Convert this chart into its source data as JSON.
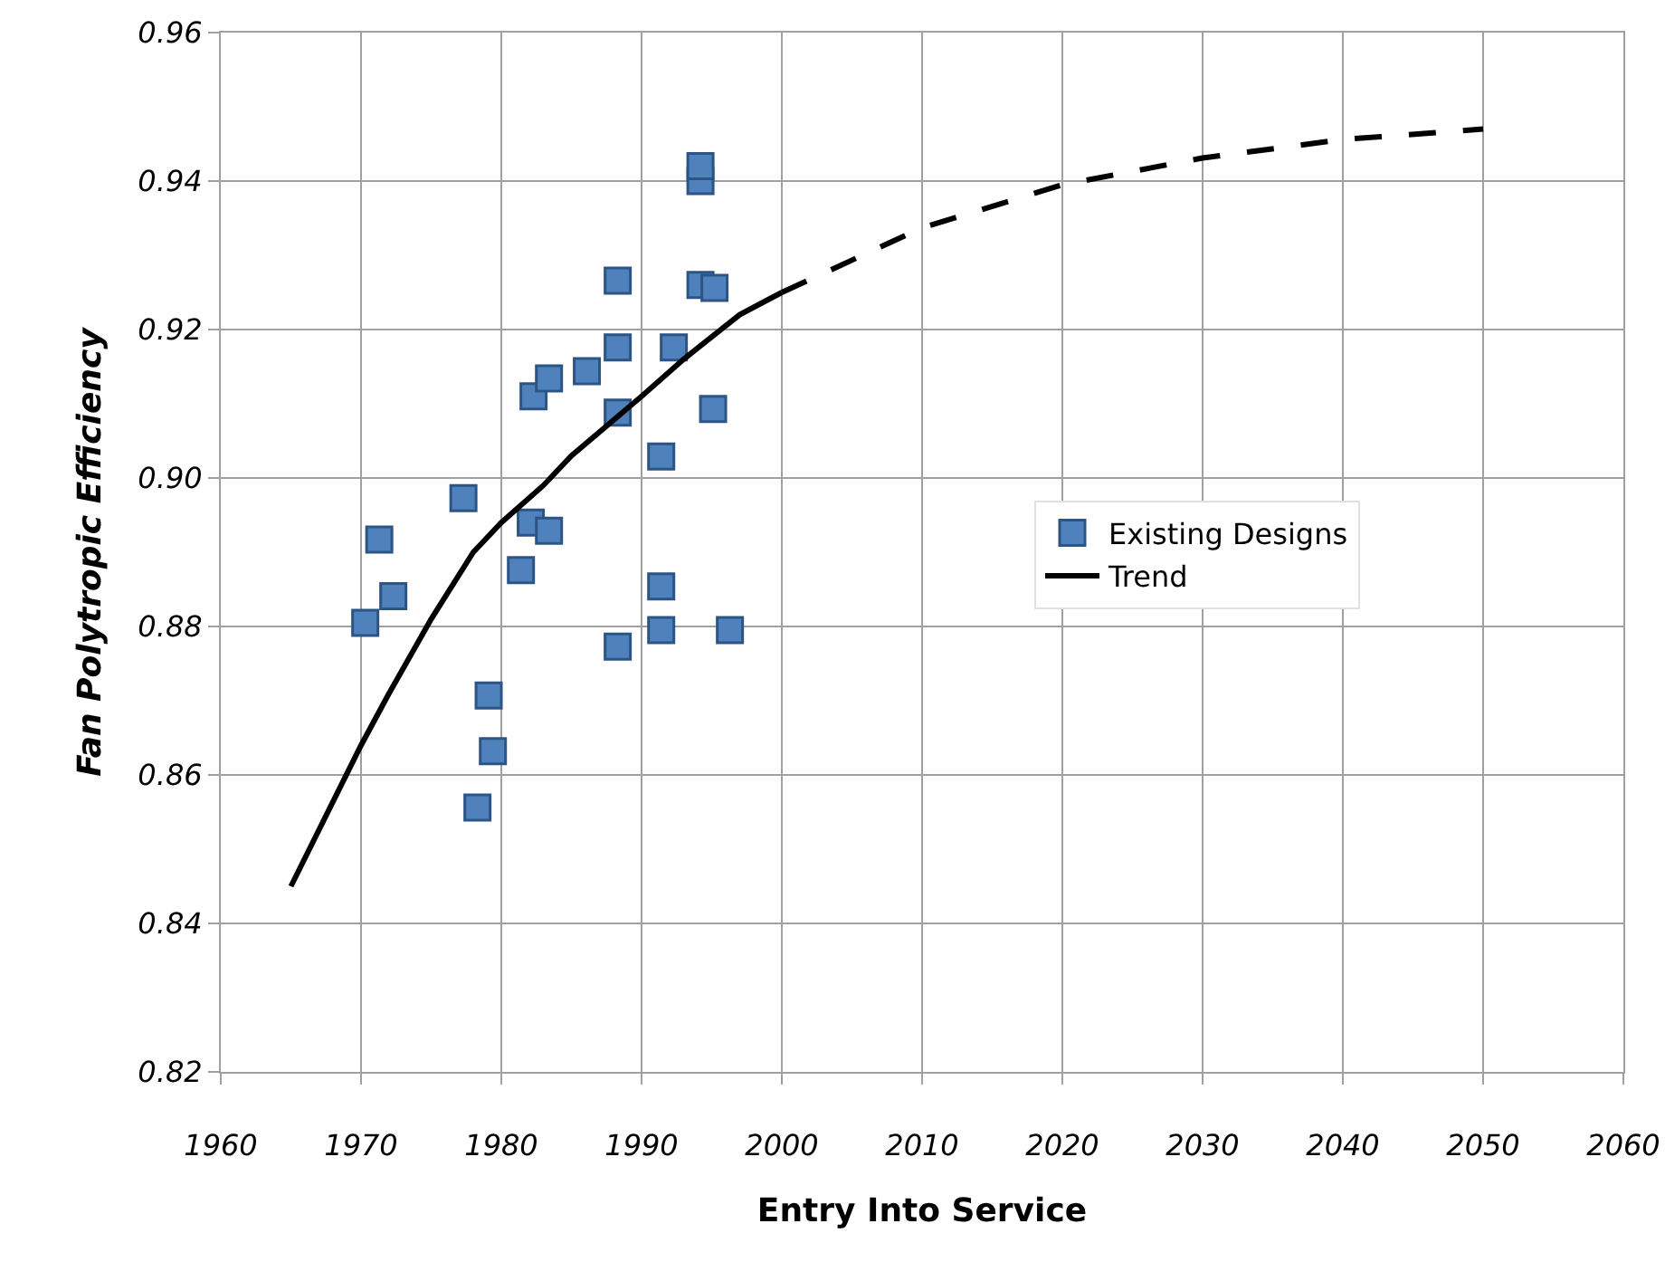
{
  "chart_data": {
    "type": "scatter",
    "xlabel": "Entry Into Service",
    "ylabel": "Fan Polytropic Efficiency",
    "xlim": [
      1960,
      2060
    ],
    "xticks": [
      1960,
      1970,
      1980,
      1990,
      2000,
      2010,
      2020,
      2030,
      2040,
      2050,
      2060
    ],
    "ylim": [
      0.82,
      0.96
    ],
    "yticks": [
      {
        "value": 0.82,
        "label": "0.82"
      },
      {
        "value": 0.84,
        "label": "0.84"
      },
      {
        "value": 0.86,
        "label": "0.86"
      },
      {
        "value": 0.88,
        "label": "0.88"
      },
      {
        "value": 0.9,
        "label": "0.90"
      },
      {
        "value": 0.92,
        "label": "0.92"
      },
      {
        "value": 0.94,
        "label": "0.94"
      },
      {
        "value": 0.96,
        "label": "0.96"
      }
    ],
    "grid": true,
    "legend": "right",
    "marker": "square",
    "series": [
      {
        "name": "Existing Designs",
        "color": "#4f81bd",
        "x": [
          1970.3,
          1971.3,
          1972.3,
          1977.3,
          1978.3,
          1979.1,
          1979.4,
          1981.4,
          1982.1,
          1982.3,
          1983.4,
          1983.4,
          1986.1,
          1988.3,
          1988.3,
          1988.3,
          1988.3,
          1991.4,
          1991.4,
          1991.4,
          1992.3,
          1994.2,
          1994.2,
          1994.2,
          1995.1,
          1995.2,
          1996.3
        ],
        "values": [
          0.8805,
          0.8917,
          0.8841,
          0.8973,
          0.8556,
          0.8707,
          0.8632,
          0.8876,
          0.894,
          0.911,
          0.8929,
          0.9134,
          0.9144,
          0.8773,
          0.9088,
          0.9176,
          0.9266,
          0.8795,
          0.8854,
          0.9029,
          0.9176,
          0.926,
          0.94,
          0.942,
          0.9093,
          0.9256,
          0.8795
        ]
      },
      {
        "name": "Trend",
        "type": "line",
        "color": "#000000",
        "line_style": "solid",
        "marker": "none",
        "x": [
          1965,
          1970,
          1972,
          1975,
          1978,
          1980,
          1983,
          1985,
          1990,
          1993,
          1995,
          1997,
          2000
        ],
        "values": [
          0.845,
          0.864,
          0.871,
          0.881,
          0.89,
          0.894,
          0.899,
          0.903,
          0.911,
          0.916,
          0.919,
          0.922,
          0.925
        ]
      },
      {
        "type": "line",
        "color": "#000000",
        "line_style": "dashed",
        "marker": "none",
        "x": [
          2000,
          2010,
          2020,
          2030,
          2040,
          2050
        ],
        "values": [
          0.925,
          0.9337,
          0.9395,
          0.9431,
          0.9456,
          0.947
        ]
      }
    ]
  }
}
